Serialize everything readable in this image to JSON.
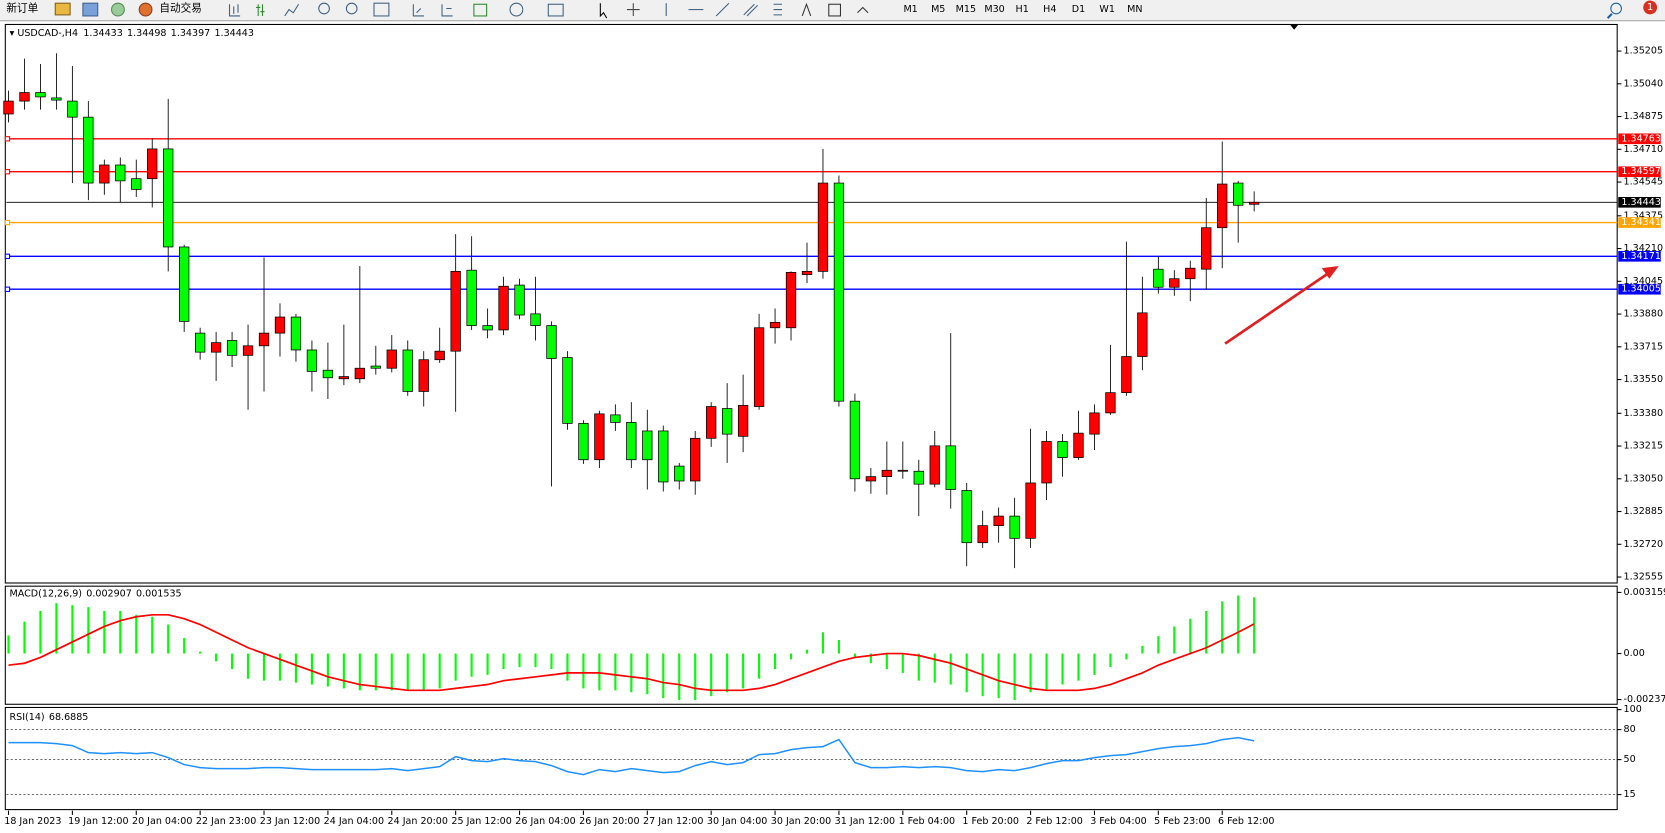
{
  "toolbar": {
    "new_order": "新订单",
    "auto_trading": "自动交易",
    "timeframes": [
      "M1",
      "M5",
      "M15",
      "M30",
      "H1",
      "H4",
      "D1",
      "W1",
      "MN"
    ]
  },
  "notification_count": 1,
  "chart_data": [
    {
      "type": "candlestick",
      "title": "USDCAD-,H4",
      "up_color": "#ff0000",
      "down_color": "#00ff00",
      "categories": [
        "18 Jan 2023",
        null,
        null,
        null,
        "19 Jan 12:00",
        null,
        null,
        null,
        "20 Jan 04:00",
        null,
        null,
        null,
        "22 Jan 23:00",
        null,
        null,
        null,
        "23 Jan 12:00",
        null,
        null,
        null,
        "24 Jan 04:00",
        null,
        null,
        null,
        "24 Jan 20:00",
        null,
        null,
        null,
        "25 Jan 12:00",
        null,
        null,
        null,
        "26 Jan 04:00",
        null,
        null,
        null,
        "26 Jan 20:00",
        null,
        null,
        null,
        "27 Jan 12:00",
        null,
        null,
        null,
        "30 Jan 04:00",
        null,
        null,
        null,
        "30 Jan 20:00",
        null,
        null,
        null,
        "31 Jan 12:00",
        null,
        null,
        null,
        "1 Feb 04:00",
        null,
        null,
        null,
        "1 Feb 20:00",
        null,
        null,
        null,
        "2 Feb 12:00",
        null,
        null,
        null,
        "3 Feb 04:00",
        null,
        null,
        null,
        "5 Feb 23:00",
        null,
        null,
        null,
        "6 Feb 12:00",
        null,
        null
      ],
      "open": [
        1.34888,
        1.34953,
        1.34996,
        1.34969,
        1.34953,
        1.34872,
        1.3454,
        1.34631,
        1.34562,
        1.34562,
        1.34712,
        1.34218,
        1.33784,
        1.33688,
        1.33747,
        1.33672,
        1.3372,
        1.33784,
        1.33865,
        1.33699,
        1.33597,
        1.33554,
        1.33554,
        1.33618,
        1.33607,
        1.33699,
        1.3349,
        1.3365,
        1.33693,
        1.34101,
        1.33822,
        1.338,
        1.34026,
        1.33881,
        1.33822,
        1.33661,
        1.33329,
        1.33146,
        1.33372,
        1.33334,
        1.33291,
        1.33291,
        1.33114,
        1.33039,
        1.33254,
        1.33404,
        1.33264,
        1.33414,
        1.33811,
        1.33811,
        1.34079,
        1.34095,
        1.3454,
        1.33441,
        1.33039,
        1.33061,
        1.33088,
        1.33088,
        1.33023,
        1.33216,
        1.32991,
        1.32728,
        1.32814,
        1.32862,
        1.3275,
        1.33029,
        1.33238,
        1.33157,
        1.33275,
        1.33382,
        1.33484,
        1.33666,
        1.34106,
        1.34015,
        1.34058,
        1.34106,
        1.34315,
        1.3454,
        1.34433
      ],
      "high": [
        1.35006,
        1.35167,
        1.3514,
        1.35194,
        1.3513,
        1.34953,
        1.34658,
        1.34669,
        1.34658,
        1.34765,
        1.34964,
        1.34229,
        1.33811,
        1.3379,
        1.3379,
        1.33827,
        1.34165,
        1.33934,
        1.33881,
        1.33747,
        1.33736,
        1.33827,
        1.34122,
        1.3372,
        1.33774,
        1.33747,
        1.33693,
        1.33811,
        1.34283,
        1.34272,
        1.33908,
        1.34068,
        1.34058,
        1.34068,
        1.33843,
        1.33693,
        1.33345,
        1.33393,
        1.33425,
        1.33436,
        1.33398,
        1.33318,
        1.3313,
        1.33291,
        1.33436,
        1.33532,
        1.33575,
        1.33881,
        1.33908,
        1.34095,
        1.3424,
        1.34712,
        1.34578,
        1.33479,
        1.33104,
        1.33238,
        1.33238,
        1.33146,
        1.33291,
        1.33784,
        1.33029,
        1.32889,
        1.32905,
        1.32954,
        1.33302,
        1.33291,
        1.33275,
        1.33393,
        1.33425,
        1.33725,
        1.34245,
        1.34068,
        1.3417,
        1.34101,
        1.34149,
        1.34465,
        1.34749,
        1.34551,
        1.34498
      ],
      "low": [
        1.34846,
        1.3491,
        1.3491,
        1.3491,
        1.3454,
        1.34454,
        1.34481,
        1.34444,
        1.3447,
        1.34417,
        1.34095,
        1.3379,
        1.3365,
        1.33543,
        1.33613,
        1.33398,
        1.3349,
        1.33666,
        1.3364,
        1.3349,
        1.33452,
        1.33522,
        1.33532,
        1.33575,
        1.33586,
        1.33468,
        1.33414,
        1.33634,
        1.33388,
        1.338,
        1.33758,
        1.33774,
        1.33854,
        1.33747,
        1.33012,
        1.33297,
        1.33125,
        1.33104,
        1.33291,
        1.33104,
        1.32996,
        1.32986,
        1.32996,
        1.3297,
        1.33211,
        1.3313,
        1.33184,
        1.33398,
        1.33731,
        1.33747,
        1.34036,
        1.34058,
        1.33414,
        1.32986,
        1.32975,
        1.3297,
        1.3305,
        1.32862,
        1.33007,
        1.329,
        1.3261,
        1.32702,
        1.32728,
        1.326,
        1.32702,
        1.32943,
        1.33061,
        1.33146,
        1.33195,
        1.33372,
        1.33468,
        1.33597,
        1.33983,
        1.33972,
        1.33945,
        1.34004,
        1.34111,
        1.3424,
        1.34397
      ],
      "close": [
        1.34953,
        1.34996,
        1.34974,
        1.34958,
        1.34872,
        1.3454,
        1.34631,
        1.34551,
        1.34508,
        1.34712,
        1.34218,
        1.33843,
        1.33688,
        1.33736,
        1.33672,
        1.3372,
        1.33784,
        1.33865,
        1.33699,
        1.33591,
        1.33559,
        1.33565,
        1.33607,
        1.33607,
        1.33699,
        1.3349,
        1.3365,
        1.33693,
        1.34095,
        1.33822,
        1.338,
        1.3402,
        1.33875,
        1.33822,
        1.33656,
        1.33329,
        1.33146,
        1.33377,
        1.33334,
        1.33146,
        1.33146,
        1.33034,
        1.33039,
        1.33254,
        1.33414,
        1.33275,
        1.3342,
        1.33811,
        1.33838,
        1.3409,
        1.34095,
        1.3454,
        1.33441,
        1.3305,
        1.33061,
        1.33093,
        1.33093,
        1.33023,
        1.33216,
        1.32996,
        1.32728,
        1.32814,
        1.32862,
        1.3275,
        1.33029,
        1.33238,
        1.33157,
        1.3328,
        1.33382,
        1.33484,
        1.33666,
        1.33886,
        1.34015,
        1.34058,
        1.34111,
        1.34315,
        1.34535,
        1.34428,
        1.34443
      ],
      "ylim": [
        1.32525,
        1.35339
      ],
      "yticks": [
        1.35205,
        {
          "value": 1.3504,
          "label": "1.35040"
        },
        1.34875,
        {
          "value": 1.3471,
          "label": "1.34710"
        },
        1.34545,
        1.34375,
        {
          "value": 1.3421,
          "label": "1.34210"
        },
        1.34045,
        {
          "value": 1.3388,
          "label": "1.33880"
        },
        1.33715,
        {
          "value": 1.3355,
          "label": "1.33550"
        },
        {
          "value": 1.3338,
          "label": "1.33380"
        },
        1.33215,
        {
          "value": 1.3305,
          "label": "1.33050"
        },
        1.32885,
        {
          "value": 1.3272,
          "label": "1.32720"
        },
        1.32555
      ],
      "levels": [
        {
          "value": 1.34763,
          "color": "#ff0000"
        },
        {
          "value": 1.34597,
          "color": "#ff0000"
        },
        {
          "value": 1.34443,
          "color": "#000000"
        },
        {
          "value": 1.34341,
          "color": "#ffa500"
        },
        {
          "value": 1.34171,
          "color": "#0000ff"
        },
        {
          "value": 1.34005,
          "color": "#0000ff"
        }
      ]
    },
    {
      "type": "bar",
      "title": "MACD(12,26,9)",
      "series": [
        {
          "color": "#00ff00",
          "values": [
            0.00094,
            0.00165,
            0.0022,
            0.0026,
            0.0025,
            0.0024,
            0.0022,
            0.0022,
            0.002,
            0.0019,
            0.0015,
            0.0008,
            0.0001,
            -0.0004,
            -0.0008,
            -0.0013,
            -0.0014,
            -0.0014,
            -0.0015,
            -0.0016,
            -0.0017,
            -0.0018,
            -0.0019,
            -0.0019,
            -0.0019,
            -0.0019,
            -0.0019,
            -0.0018,
            -0.0014,
            -0.0012,
            -0.0011,
            -0.0008,
            -0.0007,
            -0.0007,
            -0.0008,
            -0.0014,
            -0.0018,
            -0.0019,
            -0.0019,
            -0.002,
            -0.0021,
            -0.0023,
            -0.0024,
            -0.0024,
            -0.0022,
            -0.002,
            -0.0018,
            -0.0013,
            -0.0008,
            -0.0003,
            0.0002,
            0.0011,
            0.0007,
            -0.0002,
            -0.0005,
            -0.0008,
            -0.001,
            -0.0014,
            -0.0015,
            -0.0016,
            -0.002,
            -0.0022,
            -0.0023,
            -0.0024,
            -0.002,
            -0.0019,
            -0.0016,
            -0.0014,
            -0.0011,
            -0.0007,
            -0.0003,
            0.0004,
            0.0009,
            0.0014,
            0.0018,
            0.0022,
            0.0027,
            0.003,
            0.002907
          ]
        },
        {
          "type": "line",
          "color": "#ff0000",
          "values": [
            -0.0006,
            -0.0005,
            -0.0002,
            0.0002,
            0.0006,
            0.001,
            0.0014,
            0.0017,
            0.0019,
            0.002,
            0.002,
            0.0018,
            0.0015,
            0.0011,
            0.0007,
            0.0003,
            0,
            -0.0003,
            -0.0006,
            -0.0009,
            -0.0012,
            -0.0014,
            -0.0016,
            -0.0017,
            -0.0018,
            -0.0019,
            -0.0019,
            -0.0019,
            -0.0018,
            -0.0017,
            -0.0016,
            -0.0014,
            -0.0013,
            -0.0012,
            -0.0011,
            -0.001,
            -0.001,
            -0.001,
            -0.0011,
            -0.0012,
            -0.0013,
            -0.0015,
            -0.0016,
            -0.0018,
            -0.0019,
            -0.0019,
            -0.0019,
            -0.0018,
            -0.0016,
            -0.0013,
            -0.001,
            -0.0007,
            -0.0004,
            -0.0002,
            -0.0001,
            0,
            0,
            -0.0001,
            -0.0003,
            -0.0005,
            -0.0008,
            -0.0011,
            -0.0014,
            -0.0016,
            -0.0018,
            -0.0019,
            -0.0019,
            -0.0019,
            -0.0018,
            -0.0016,
            -0.0013,
            -0.001,
            -0.0006,
            -0.0003,
            0,
            0.0003,
            0.0007,
            0.0011,
            0.001535
          ]
        }
      ],
      "ylim": [
        -0.00262,
        0.00348
      ],
      "yticks": [
        0.003159,
        {
          "value": 0,
          "label": "0.00"
        },
        -0.002377
      ]
    },
    {
      "type": "line",
      "title": "RSI(14)",
      "color": "#1e90ff",
      "values": [
        67,
        67,
        67,
        66,
        64,
        57,
        56,
        57,
        56,
        57,
        52,
        45,
        42,
        41,
        41,
        41,
        42,
        42,
        41,
        40,
        40,
        40,
        40,
        40,
        41,
        39,
        41,
        43,
        53,
        49,
        48,
        51,
        49,
        48,
        44,
        38,
        35,
        40,
        38,
        41,
        39,
        37,
        38,
        44,
        48,
        45,
        47,
        55,
        56,
        60,
        62,
        63,
        70,
        47,
        42,
        42,
        43,
        42,
        43,
        42,
        39,
        38,
        40,
        39,
        42,
        46,
        49,
        49,
        52,
        54,
        55,
        58,
        61,
        63,
        64,
        66,
        70,
        72,
        68.6885
      ],
      "ylim": [
        0,
        100
      ],
      "yticks": [
        100,
        80,
        50,
        15
      ],
      "levels": [
        80,
        50,
        15
      ]
    }
  ]
}
